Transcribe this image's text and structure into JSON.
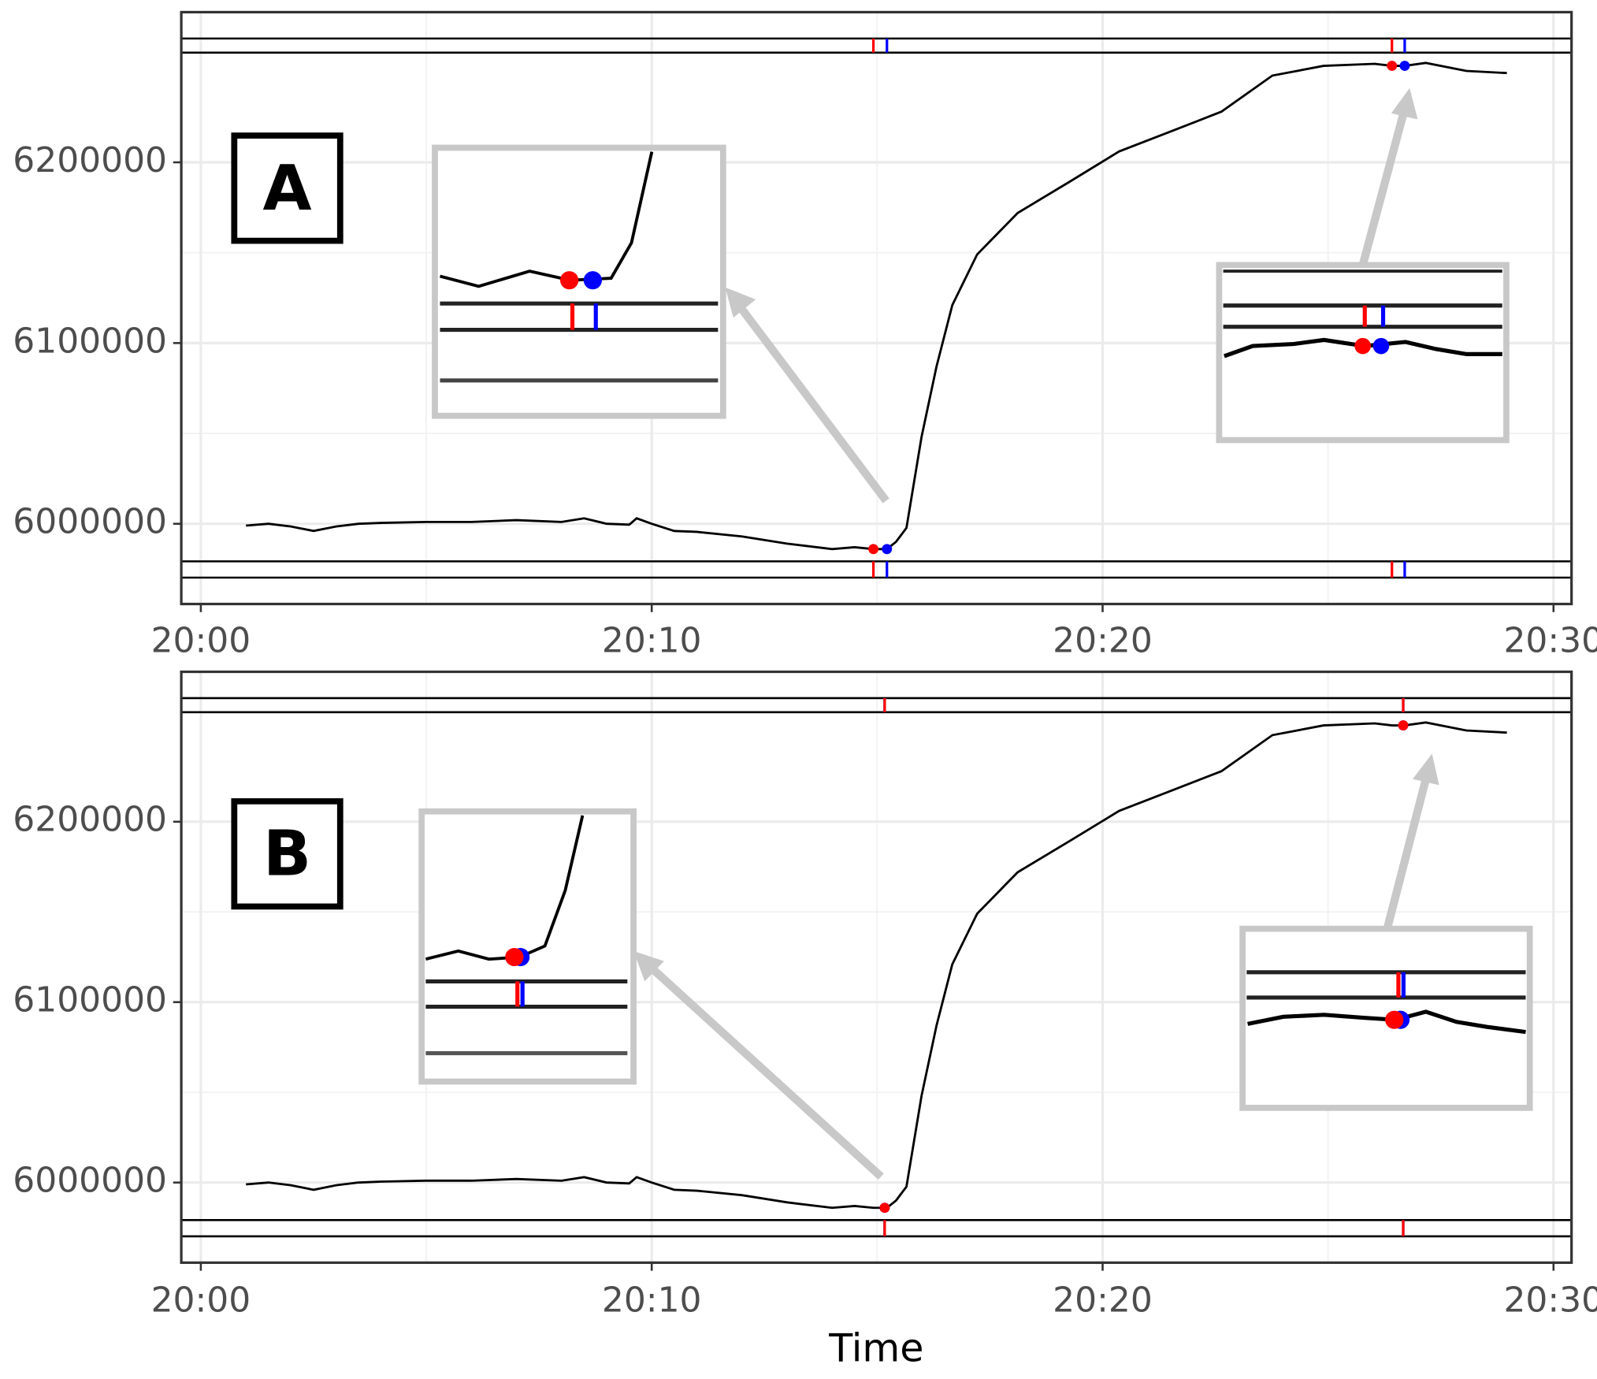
{
  "chart_data": [
    {
      "type": "line",
      "panel_label": "A",
      "x": [
        "20:01:00",
        "20:01:30",
        "20:02:00",
        "20:02:30",
        "20:03:00",
        "20:03:30",
        "20:04:00",
        "20:05:00",
        "20:06:00",
        "20:07:00",
        "20:08:00",
        "20:08:30",
        "20:09:00",
        "20:09:30",
        "20:09:40",
        "20:10:00",
        "20:10:30",
        "20:11:00",
        "20:12:00",
        "20:13:00",
        "20:14:00",
        "20:14:30",
        "20:14:55",
        "20:15:13",
        "20:15:25",
        "20:15:39",
        "20:15:59",
        "20:16:19",
        "20:16:40",
        "20:17:13",
        "20:18:07",
        "20:19:15",
        "20:20:22",
        "20:21:30",
        "20:22:38",
        "20:23:46",
        "20:24:54",
        "20:26:02",
        "20:26:25",
        "20:26:42",
        "20:27:10",
        "20:28:04",
        "20:28:58"
      ],
      "values": [
        5999000,
        6000000,
        5998500,
        5996000,
        5998500,
        6000000,
        6000500,
        6001000,
        6001000,
        6002000,
        6001000,
        6003000,
        6000000,
        5999500,
        6003000,
        6000000,
        5996000,
        5995500,
        5993000,
        5989000,
        5986000,
        5987000,
        5986000,
        5986000,
        5990000,
        5997700,
        6048000,
        6087000,
        6121000,
        6149000,
        6172000,
        6189000,
        6206000,
        6217000,
        6228000,
        6248000,
        6253400,
        6254500,
        6253400,
        6253400,
        6255000,
        6250600,
        6249400
      ],
      "color": "#000000",
      "markers": [
        {
          "x": "20:14:55",
          "y": 5986000,
          "color": "#ff0000"
        },
        {
          "x": "20:15:13",
          "y": 5986000,
          "color": "#0000ff"
        },
        {
          "x": "20:26:25",
          "y": 6253400,
          "color": "#ff0000"
        },
        {
          "x": "20:26:42",
          "y": 6253400,
          "color": "#0000ff"
        }
      ],
      "hlines": [
        6268500,
        6260700,
        5979200,
        5970200
      ],
      "xlim": [
        "19:59:34",
        "20:30:24"
      ],
      "xticks": [
        "20:00",
        "20:10",
        "20:20",
        "20:30"
      ],
      "ylim": [
        5955600,
        6283100
      ],
      "yticks": [
        6000000,
        6100000,
        6200000
      ],
      "grid": true
    },
    {
      "type": "line",
      "panel_label": "B",
      "x_label": "Time",
      "x": [
        "20:01:00",
        "20:01:30",
        "20:02:00",
        "20:02:30",
        "20:03:00",
        "20:03:30",
        "20:04:00",
        "20:05:00",
        "20:06:00",
        "20:07:00",
        "20:08:00",
        "20:08:30",
        "20:09:00",
        "20:09:30",
        "20:09:40",
        "20:10:00",
        "20:10:30",
        "20:11:00",
        "20:12:00",
        "20:13:00",
        "20:14:00",
        "20:14:30",
        "20:14:55",
        "20:15:13",
        "20:15:25",
        "20:15:39",
        "20:15:59",
        "20:16:19",
        "20:16:40",
        "20:17:13",
        "20:18:07",
        "20:19:15",
        "20:20:22",
        "20:21:30",
        "20:22:38",
        "20:23:46",
        "20:24:54",
        "20:26:02",
        "20:26:25",
        "20:26:42",
        "20:27:10",
        "20:28:04",
        "20:28:58"
      ],
      "values": [
        5999000,
        6000000,
        5998500,
        5996000,
        5998500,
        6000000,
        6000500,
        6001000,
        6001000,
        6002000,
        6001000,
        6003000,
        6000000,
        5999500,
        6003000,
        6000000,
        5996000,
        5995500,
        5993000,
        5989000,
        5986000,
        5987000,
        5986000,
        5986000,
        5990000,
        5997700,
        6048000,
        6087000,
        6121000,
        6149000,
        6172000,
        6189000,
        6206000,
        6217000,
        6228000,
        6248000,
        6253400,
        6254500,
        6253400,
        6253400,
        6255000,
        6250600,
        6249400
      ],
      "color": "#000000",
      "markers": [
        {
          "x": "20:15:10",
          "y": 5986000,
          "color": "#0000ff"
        },
        {
          "x": "20:15:10",
          "y": 5986000,
          "color": "#ff0000"
        },
        {
          "x": "20:26:40",
          "y": 6253400,
          "color": "#0000ff"
        },
        {
          "x": "20:26:40",
          "y": 6253400,
          "color": "#ff0000"
        }
      ],
      "hlines": [
        6268500,
        6260700,
        5979200,
        5970200
      ],
      "xlim": [
        "19:59:34",
        "20:30:24"
      ],
      "xticks": [
        "20:00",
        "20:10",
        "20:20",
        "20:30"
      ],
      "ylim": [
        5955600,
        6283100
      ],
      "yticks": [
        6000000,
        6100000,
        6200000
      ],
      "grid": true
    }
  ]
}
